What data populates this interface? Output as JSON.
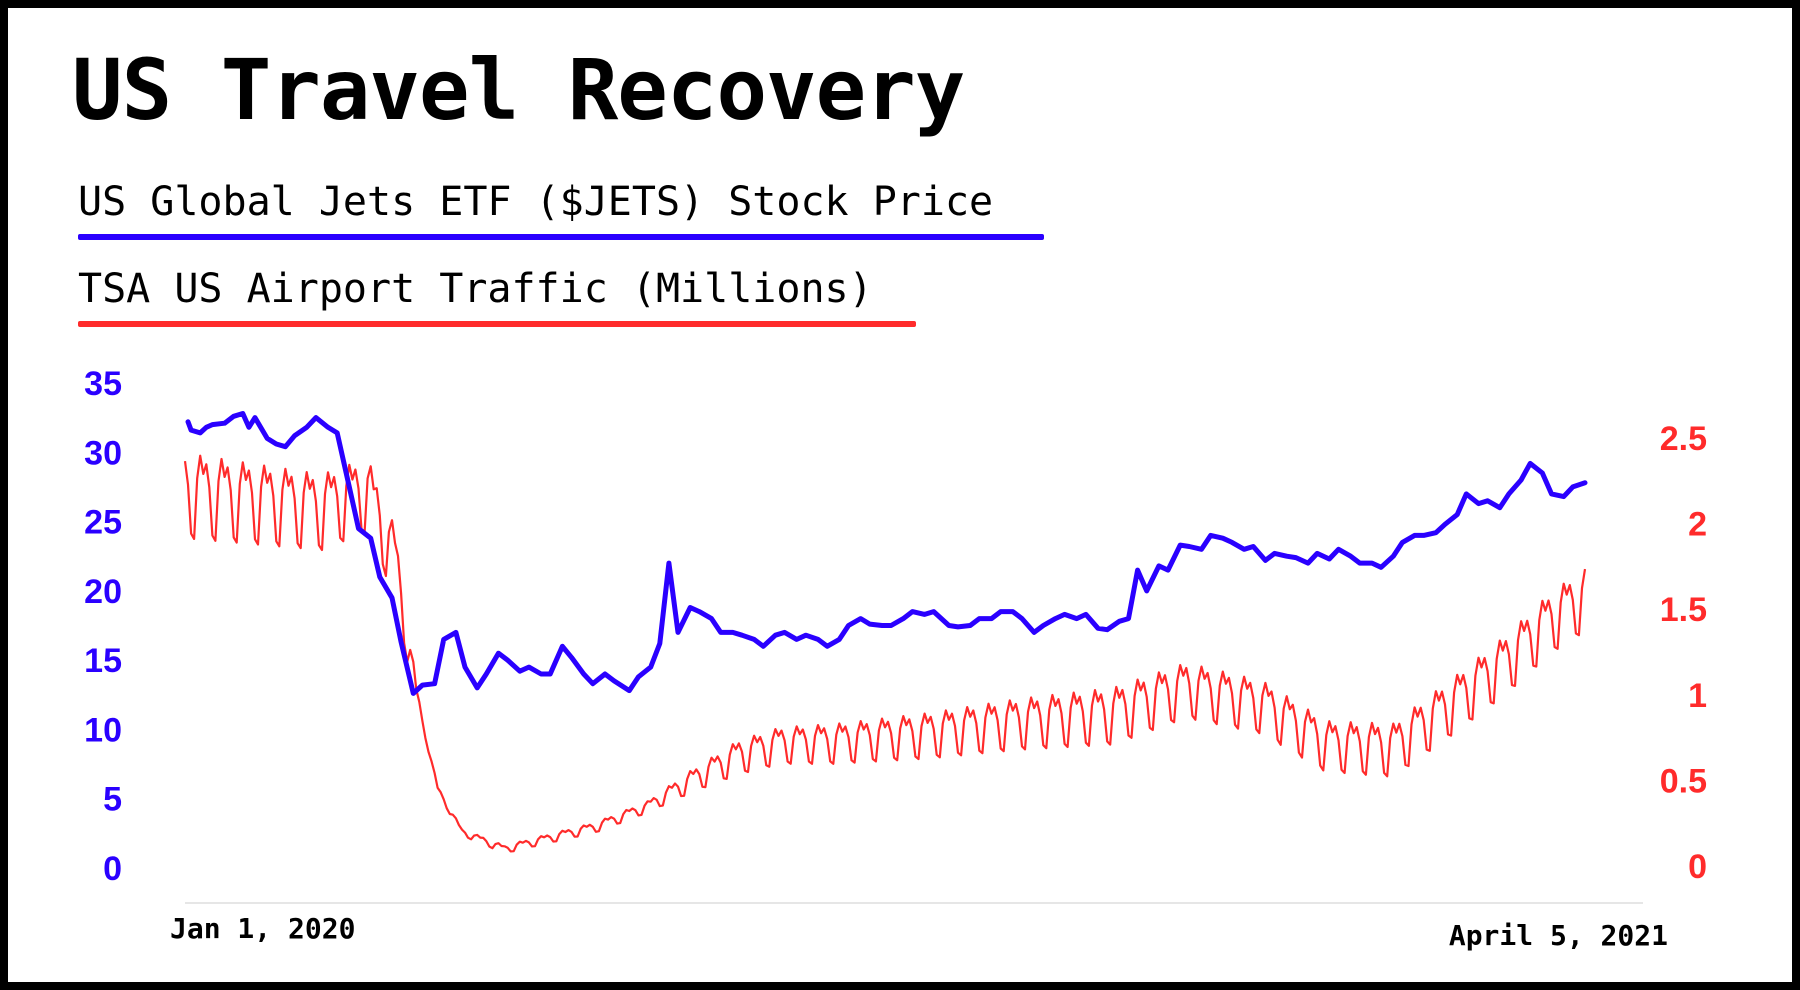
{
  "colors": {
    "primary_series": "#2a00ff",
    "secondary_series": "#ff2b2b",
    "axis": "#e6e6e6",
    "text": "#000000"
  },
  "chart_data": {
    "type": "line",
    "title": "US Travel Recovery",
    "grid": false,
    "legend_placement": "top-left",
    "x_start_label": "Jan 1, 2020",
    "x_end_label": "April 5, 2021",
    "x_range": [
      "2020-01-01",
      "2021-04-05"
    ],
    "y_left": {
      "ticks": [
        "0",
        "5",
        "10",
        "15",
        "20",
        "25",
        "30",
        "35"
      ],
      "range": [
        0,
        35
      ]
    },
    "y_right": {
      "ticks": [
        "0",
        "0.5",
        "1",
        "1.5",
        "2",
        "2.5"
      ],
      "range": [
        0,
        2.5
      ]
    },
    "series": [
      {
        "name": "US Global Jets ETF ($JETS) Stock Price",
        "axis": "left",
        "points": [
          [
            "2020-01-02",
            32.2
          ],
          [
            "2020-01-03",
            31.6
          ],
          [
            "2020-01-06",
            31.4
          ],
          [
            "2020-01-08",
            31.8
          ],
          [
            "2020-01-10",
            32.0
          ],
          [
            "2020-01-14",
            32.1
          ],
          [
            "2020-01-17",
            32.6
          ],
          [
            "2020-01-20",
            32.8
          ],
          [
            "2020-01-22",
            31.8
          ],
          [
            "2020-01-24",
            32.5
          ],
          [
            "2020-01-28",
            31.0
          ],
          [
            "2020-01-31",
            30.6
          ],
          [
            "2020-02-03",
            30.4
          ],
          [
            "2020-02-06",
            31.2
          ],
          [
            "2020-02-10",
            31.8
          ],
          [
            "2020-02-13",
            32.5
          ],
          [
            "2020-02-17",
            31.8
          ],
          [
            "2020-02-20",
            31.4
          ],
          [
            "2020-02-24",
            27.5
          ],
          [
            "2020-02-27",
            24.5
          ],
          [
            "2020-03-02",
            23.8
          ],
          [
            "2020-03-05",
            21.0
          ],
          [
            "2020-03-09",
            19.5
          ],
          [
            "2020-03-12",
            16.3
          ],
          [
            "2020-03-16",
            12.6
          ],
          [
            "2020-03-19",
            13.2
          ],
          [
            "2020-03-23",
            13.3
          ],
          [
            "2020-03-26",
            16.5
          ],
          [
            "2020-03-30",
            17.0
          ],
          [
            "2020-04-02",
            14.5
          ],
          [
            "2020-04-06",
            13.0
          ],
          [
            "2020-04-09",
            14.0
          ],
          [
            "2020-04-13",
            15.5
          ],
          [
            "2020-04-16",
            15.0
          ],
          [
            "2020-04-20",
            14.2
          ],
          [
            "2020-04-23",
            14.5
          ],
          [
            "2020-04-27",
            14.0
          ],
          [
            "2020-04-30",
            14.0
          ],
          [
            "2020-05-04",
            16.0
          ],
          [
            "2020-05-07",
            15.2
          ],
          [
            "2020-05-11",
            14.0
          ],
          [
            "2020-05-14",
            13.3
          ],
          [
            "2020-05-18",
            14.0
          ],
          [
            "2020-05-21",
            13.5
          ],
          [
            "2020-05-26",
            12.8
          ],
          [
            "2020-05-29",
            13.8
          ],
          [
            "2020-06-02",
            14.5
          ],
          [
            "2020-06-05",
            16.2
          ],
          [
            "2020-06-08",
            22.0
          ],
          [
            "2020-06-11",
            17.0
          ],
          [
            "2020-06-15",
            18.8
          ],
          [
            "2020-06-18",
            18.5
          ],
          [
            "2020-06-22",
            18.0
          ],
          [
            "2020-06-25",
            17.0
          ],
          [
            "2020-06-29",
            17.0
          ],
          [
            "2020-07-02",
            16.8
          ],
          [
            "2020-07-06",
            16.5
          ],
          [
            "2020-07-09",
            16.0
          ],
          [
            "2020-07-13",
            16.8
          ],
          [
            "2020-07-16",
            17.0
          ],
          [
            "2020-07-20",
            16.5
          ],
          [
            "2020-07-23",
            16.8
          ],
          [
            "2020-07-27",
            16.5
          ],
          [
            "2020-07-30",
            16.0
          ],
          [
            "2020-08-03",
            16.5
          ],
          [
            "2020-08-06",
            17.5
          ],
          [
            "2020-08-10",
            18.0
          ],
          [
            "2020-08-13",
            17.6
          ],
          [
            "2020-08-17",
            17.5
          ],
          [
            "2020-08-20",
            17.5
          ],
          [
            "2020-08-24",
            18.0
          ],
          [
            "2020-08-27",
            18.5
          ],
          [
            "2020-08-31",
            18.3
          ],
          [
            "2020-09-03",
            18.5
          ],
          [
            "2020-09-08",
            17.5
          ],
          [
            "2020-09-11",
            17.4
          ],
          [
            "2020-09-15",
            17.5
          ],
          [
            "2020-09-18",
            18.0
          ],
          [
            "2020-09-22",
            18.0
          ],
          [
            "2020-09-25",
            18.5
          ],
          [
            "2020-09-29",
            18.5
          ],
          [
            "2020-10-02",
            18.0
          ],
          [
            "2020-10-06",
            17.0
          ],
          [
            "2020-10-09",
            17.5
          ],
          [
            "2020-10-13",
            18.0
          ],
          [
            "2020-10-16",
            18.3
          ],
          [
            "2020-10-20",
            18.0
          ],
          [
            "2020-10-23",
            18.3
          ],
          [
            "2020-10-27",
            17.3
          ],
          [
            "2020-10-30",
            17.2
          ],
          [
            "2020-11-03",
            17.8
          ],
          [
            "2020-11-06",
            18.0
          ],
          [
            "2020-11-09",
            21.5
          ],
          [
            "2020-11-12",
            20.0
          ],
          [
            "2020-11-16",
            21.8
          ],
          [
            "2020-11-19",
            21.5
          ],
          [
            "2020-11-23",
            23.3
          ],
          [
            "2020-11-26",
            23.2
          ],
          [
            "2020-11-30",
            23.0
          ],
          [
            "2020-12-03",
            24.0
          ],
          [
            "2020-12-07",
            23.8
          ],
          [
            "2020-12-10",
            23.5
          ],
          [
            "2020-12-14",
            23.0
          ],
          [
            "2020-12-17",
            23.2
          ],
          [
            "2020-12-21",
            22.2
          ],
          [
            "2020-12-24",
            22.7
          ],
          [
            "2020-12-28",
            22.5
          ],
          [
            "2020-12-31",
            22.4
          ],
          [
            "2021-01-04",
            22.0
          ],
          [
            "2021-01-07",
            22.7
          ],
          [
            "2021-01-11",
            22.3
          ],
          [
            "2021-01-14",
            23.0
          ],
          [
            "2021-01-18",
            22.5
          ],
          [
            "2021-01-21",
            22.0
          ],
          [
            "2021-01-25",
            22.0
          ],
          [
            "2021-01-28",
            21.7
          ],
          [
            "2021-02-01",
            22.5
          ],
          [
            "2021-02-04",
            23.5
          ],
          [
            "2021-02-08",
            24.0
          ],
          [
            "2021-02-11",
            24.0
          ],
          [
            "2021-02-15",
            24.2
          ],
          [
            "2021-02-18",
            24.8
          ],
          [
            "2021-02-22",
            25.5
          ],
          [
            "2021-02-25",
            27.0
          ],
          [
            "2021-03-01",
            26.3
          ],
          [
            "2021-03-04",
            26.5
          ],
          [
            "2021-03-08",
            26.0
          ],
          [
            "2021-03-11",
            27.0
          ],
          [
            "2021-03-15",
            28.0
          ],
          [
            "2021-03-18",
            29.2
          ],
          [
            "2021-03-22",
            28.5
          ],
          [
            "2021-03-25",
            27.0
          ],
          [
            "2021-03-29",
            26.8
          ],
          [
            "2021-04-01",
            27.5
          ],
          [
            "2021-04-05",
            27.8
          ]
        ]
      },
      {
        "name": "TSA US Airport Traffic (Millions)",
        "axis": "right",
        "anchors": [
          [
            "2020-01-01",
            2.2
          ],
          [
            "2020-02-15",
            2.1
          ],
          [
            "2020-03-01",
            2.2
          ],
          [
            "2020-03-10",
            1.8
          ],
          [
            "2020-03-17",
            1.0
          ],
          [
            "2020-03-24",
            0.45
          ],
          [
            "2020-04-01",
            0.2
          ],
          [
            "2020-04-15",
            0.1
          ],
          [
            "2020-05-01",
            0.17
          ],
          [
            "2020-05-15",
            0.23
          ],
          [
            "2020-06-01",
            0.35
          ],
          [
            "2020-06-15",
            0.5
          ],
          [
            "2020-07-01",
            0.65
          ],
          [
            "2020-07-15",
            0.72
          ],
          [
            "2020-08-01",
            0.73
          ],
          [
            "2020-09-01",
            0.78
          ],
          [
            "2020-10-01",
            0.85
          ],
          [
            "2020-11-01",
            0.9
          ],
          [
            "2020-11-25",
            1.05
          ],
          [
            "2020-12-20",
            0.95
          ],
          [
            "2021-01-10",
            0.72
          ],
          [
            "2021-02-01",
            0.7
          ],
          [
            "2021-02-20",
            0.95
          ],
          [
            "2021-03-10",
            1.2
          ],
          [
            "2021-03-25",
            1.45
          ],
          [
            "2021-04-05",
            1.58
          ]
        ],
        "weekly_swing": [
          [
            "2020-01-01",
            0.3
          ],
          [
            "2020-03-10",
            0.25
          ],
          [
            "2020-03-20",
            0.02
          ],
          [
            "2020-06-01",
            0.04
          ],
          [
            "2020-07-01",
            0.12
          ],
          [
            "2020-09-01",
            0.16
          ],
          [
            "2020-11-01",
            0.2
          ],
          [
            "2021-01-15",
            0.18
          ],
          [
            "2021-04-05",
            0.22
          ]
        ]
      }
    ]
  }
}
